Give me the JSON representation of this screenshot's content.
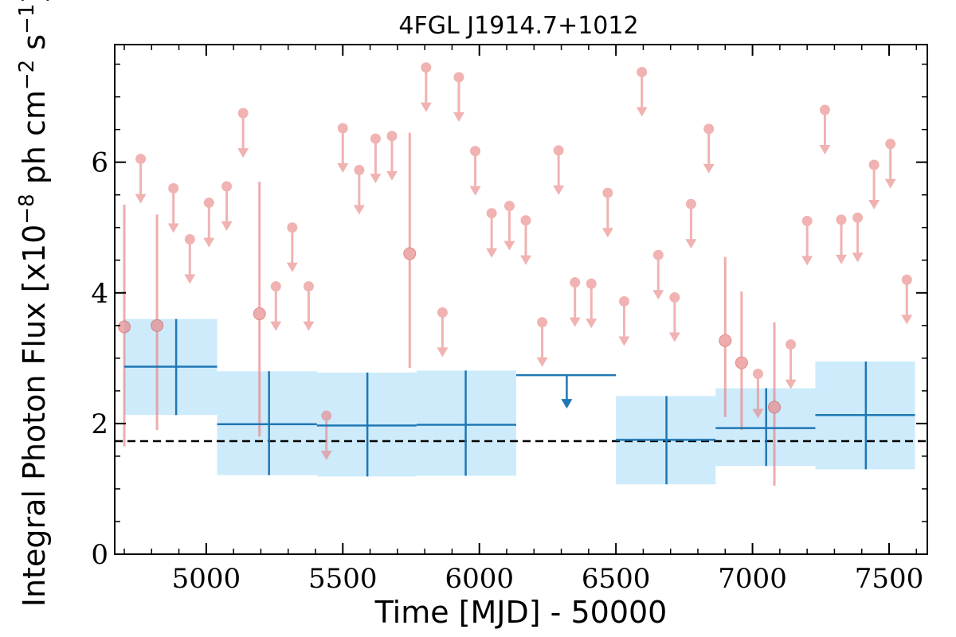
{
  "chart_data": {
    "type": "scatter",
    "title": "4FGL J1914.7+1012",
    "xlabel": "Time [MJD] - 50000",
    "ylabel_parts": [
      "Integral Photon Flux [x10",
      "−8",
      " ph cm",
      "−2",
      " s",
      "−1",
      "]"
    ],
    "xlim": [
      4665,
      7640
    ],
    "ylim": [
      0,
      7.8
    ],
    "x_ticks": [
      5000,
      5500,
      6000,
      6500,
      7000,
      7500
    ],
    "y_ticks": [
      0,
      2,
      4,
      6
    ],
    "y_minor_step": 0.5,
    "x_minor_step": 100,
    "mean_flux": 1.73,
    "colors": {
      "short": "#e88080",
      "long": "#1f77b4",
      "band": "#c8e9fb",
      "mean": "#000000"
    },
    "short_bin_detections": [
      {
        "x": 4700,
        "y": 3.48,
        "ylo": 1.65,
        "yhi": 5.35
      },
      {
        "x": 4820,
        "y": 3.5,
        "ylo": 1.9,
        "yhi": 5.2
      },
      {
        "x": 5195,
        "y": 3.68,
        "ylo": 1.8,
        "yhi": 5.7
      },
      {
        "x": 5745,
        "y": 4.6,
        "ylo": 2.85,
        "yhi": 6.45
      },
      {
        "x": 6900,
        "y": 3.27,
        "ylo": 2.1,
        "yhi": 4.55
      },
      {
        "x": 6960,
        "y": 2.93,
        "ylo": 1.9,
        "yhi": 4.02
      },
      {
        "x": 7080,
        "y": 2.25,
        "ylo": 1.05,
        "yhi": 3.55
      }
    ],
    "short_bin_upper_limits": [
      {
        "x": 4760,
        "y": 6.05
      },
      {
        "x": 4880,
        "y": 5.6
      },
      {
        "x": 4940,
        "y": 4.82
      },
      {
        "x": 5010,
        "y": 5.38
      },
      {
        "x": 5075,
        "y": 5.63
      },
      {
        "x": 5135,
        "y": 6.75
      },
      {
        "x": 5255,
        "y": 4.1
      },
      {
        "x": 5315,
        "y": 5.0
      },
      {
        "x": 5375,
        "y": 4.1
      },
      {
        "x": 5440,
        "y": 2.12
      },
      {
        "x": 5500,
        "y": 6.52
      },
      {
        "x": 5560,
        "y": 5.88
      },
      {
        "x": 5620,
        "y": 6.36
      },
      {
        "x": 5680,
        "y": 6.4
      },
      {
        "x": 5805,
        "y": 7.45
      },
      {
        "x": 5865,
        "y": 3.7
      },
      {
        "x": 5925,
        "y": 7.3
      },
      {
        "x": 5985,
        "y": 6.17
      },
      {
        "x": 6045,
        "y": 5.22
      },
      {
        "x": 6110,
        "y": 5.33
      },
      {
        "x": 6170,
        "y": 5.11
      },
      {
        "x": 6230,
        "y": 3.55
      },
      {
        "x": 6290,
        "y": 6.18
      },
      {
        "x": 6350,
        "y": 4.16
      },
      {
        "x": 6410,
        "y": 4.14
      },
      {
        "x": 6470,
        "y": 5.53
      },
      {
        "x": 6530,
        "y": 3.87
      },
      {
        "x": 6595,
        "y": 7.38
      },
      {
        "x": 6655,
        "y": 4.58
      },
      {
        "x": 6715,
        "y": 3.93
      },
      {
        "x": 6775,
        "y": 5.36
      },
      {
        "x": 6840,
        "y": 6.51
      },
      {
        "x": 7020,
        "y": 2.76
      },
      {
        "x": 7140,
        "y": 3.21
      },
      {
        "x": 7200,
        "y": 5.1
      },
      {
        "x": 7265,
        "y": 6.8
      },
      {
        "x": 7325,
        "y": 5.12
      },
      {
        "x": 7385,
        "y": 5.15
      },
      {
        "x": 7445,
        "y": 5.96
      },
      {
        "x": 7505,
        "y": 6.28
      },
      {
        "x": 7565,
        "y": 4.2
      }
    ],
    "long_bins": [
      {
        "x0": 4700,
        "x1": 5040,
        "xc": 4890,
        "y": 2.87,
        "ylo": 2.13,
        "yhi": 3.6,
        "upper_limit": false
      },
      {
        "x0": 5040,
        "x1": 5405,
        "xc": 5230,
        "y": 1.99,
        "ylo": 1.21,
        "yhi": 2.8,
        "upper_limit": false
      },
      {
        "x0": 5405,
        "x1": 5770,
        "xc": 5590,
        "y": 1.97,
        "ylo": 1.19,
        "yhi": 2.78,
        "upper_limit": false
      },
      {
        "x0": 5770,
        "x1": 6135,
        "xc": 5950,
        "y": 1.98,
        "ylo": 1.2,
        "yhi": 2.81,
        "upper_limit": false
      },
      {
        "x0": 6135,
        "x1": 6500,
        "xc": 6320,
        "y": 2.74,
        "upper_limit": true
      },
      {
        "x0": 6500,
        "x1": 6865,
        "xc": 6685,
        "y": 1.75,
        "ylo": 1.07,
        "yhi": 2.42,
        "upper_limit": false
      },
      {
        "x0": 6865,
        "x1": 7230,
        "xc": 7050,
        "y": 1.93,
        "ylo": 1.35,
        "yhi": 2.54,
        "upper_limit": false
      },
      {
        "x0": 7230,
        "x1": 7595,
        "xc": 7415,
        "y": 2.13,
        "ylo": 1.3,
        "yhi": 2.95,
        "upper_limit": false
      }
    ]
  }
}
